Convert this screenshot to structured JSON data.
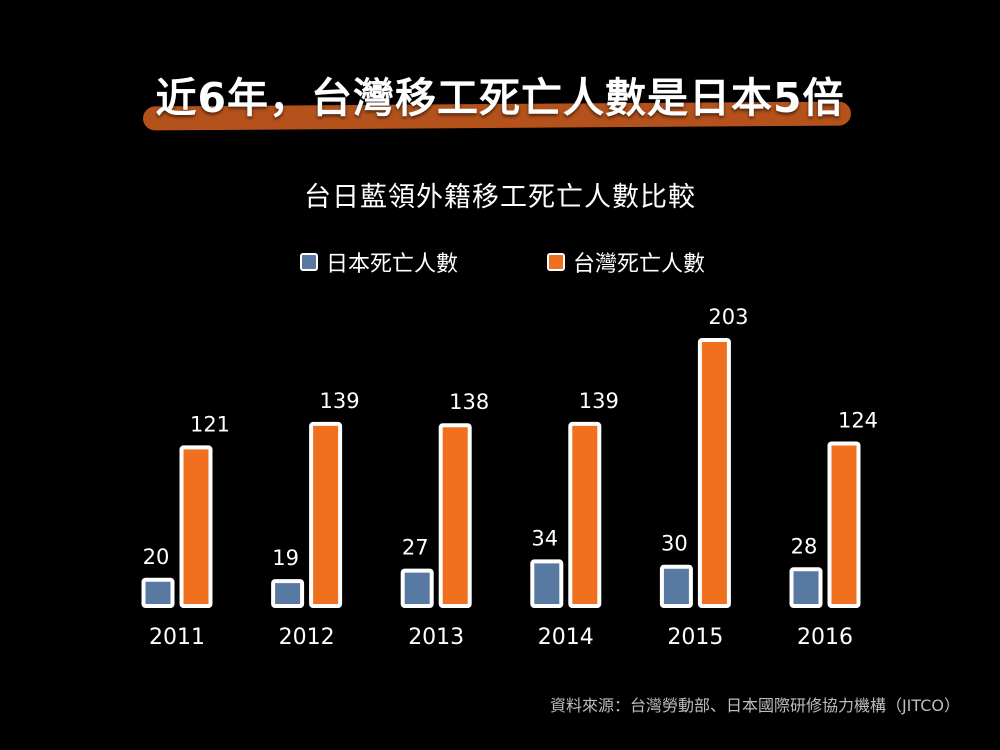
{
  "headline": "近6年，台灣移工死亡人數是日本5倍",
  "source": "資料來源：台灣勞動部、日本國際研修協力機構（JITCO）",
  "colors": {
    "background": "#000000",
    "headline_bar": "#b5521c",
    "japan": "#5879a1",
    "taiwan": "#f07020",
    "outline": "#ffffff",
    "source_text": "#bdbdbd"
  },
  "chart_data": {
    "type": "bar",
    "title": "台日藍領外籍移工死亡人數比較",
    "categories": [
      "2011",
      "2012",
      "2013",
      "2014",
      "2015",
      "2016"
    ],
    "series": [
      {
        "name": "日本死亡人數",
        "values": [
          20,
          19,
          27,
          34,
          30,
          28
        ]
      },
      {
        "name": "台灣死亡人數",
        "values": [
          121,
          139,
          138,
          139,
          203,
          124
        ]
      }
    ],
    "xlabel": "",
    "ylabel": "",
    "ylim": [
      0,
      203
    ],
    "grid": false,
    "legend": "top-center"
  }
}
